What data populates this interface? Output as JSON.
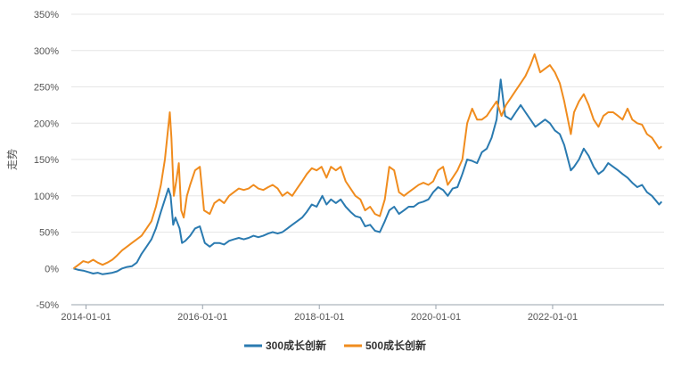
{
  "chart_data": {
    "type": "line",
    "ylabel": "走势",
    "ylim": [
      -50,
      350
    ],
    "y_ticks": [
      -50,
      0,
      50,
      100,
      150,
      200,
      250,
      300,
      350
    ],
    "y_tick_labels": [
      "-50%",
      "0%",
      "50%",
      "100%",
      "150%",
      "200%",
      "250%",
      "300%",
      "350%"
    ],
    "x_range": [
      "2013-10-01",
      "2023-11-30"
    ],
    "x_ticks": [
      "2014-01-01",
      "2016-01-01",
      "2018-01-01",
      "2020-01-01",
      "2022-01-01"
    ],
    "grid": "horizontal",
    "legend_position": "bottom",
    "series": [
      {
        "name": "300成长创新",
        "color": "#2a7ab0",
        "points": [
          [
            "2013-10-15",
            0
          ],
          [
            "2013-11-15",
            -2
          ],
          [
            "2013-12-15",
            -3
          ],
          [
            "2014-01-15",
            -5
          ],
          [
            "2014-02-15",
            -7
          ],
          [
            "2014-03-15",
            -6
          ],
          [
            "2014-04-15",
            -8
          ],
          [
            "2014-05-15",
            -7
          ],
          [
            "2014-06-15",
            -6
          ],
          [
            "2014-07-15",
            -4
          ],
          [
            "2014-08-15",
            0
          ],
          [
            "2014-09-15",
            2
          ],
          [
            "2014-10-15",
            3
          ],
          [
            "2014-11-15",
            8
          ],
          [
            "2014-12-15",
            20
          ],
          [
            "2015-01-15",
            30
          ],
          [
            "2015-02-15",
            40
          ],
          [
            "2015-03-15",
            55
          ],
          [
            "2015-04-15",
            78
          ],
          [
            "2015-05-10",
            95
          ],
          [
            "2015-06-01",
            110
          ],
          [
            "2015-06-15",
            100
          ],
          [
            "2015-07-01",
            60
          ],
          [
            "2015-07-15",
            70
          ],
          [
            "2015-08-10",
            55
          ],
          [
            "2015-08-25",
            35
          ],
          [
            "2015-09-15",
            38
          ],
          [
            "2015-10-15",
            45
          ],
          [
            "2015-11-15",
            55
          ],
          [
            "2015-12-15",
            58
          ],
          [
            "2016-01-15",
            35
          ],
          [
            "2016-02-15",
            30
          ],
          [
            "2016-03-15",
            35
          ],
          [
            "2016-04-15",
            35
          ],
          [
            "2016-05-15",
            33
          ],
          [
            "2016-06-15",
            38
          ],
          [
            "2016-07-15",
            40
          ],
          [
            "2016-08-15",
            42
          ],
          [
            "2016-09-15",
            40
          ],
          [
            "2016-10-15",
            42
          ],
          [
            "2016-11-15",
            45
          ],
          [
            "2016-12-15",
            43
          ],
          [
            "2017-01-15",
            45
          ],
          [
            "2017-02-15",
            48
          ],
          [
            "2017-03-15",
            50
          ],
          [
            "2017-04-15",
            48
          ],
          [
            "2017-05-15",
            50
          ],
          [
            "2017-06-15",
            55
          ],
          [
            "2017-07-15",
            60
          ],
          [
            "2017-08-15",
            65
          ],
          [
            "2017-09-15",
            70
          ],
          [
            "2017-10-15",
            78
          ],
          [
            "2017-11-15",
            88
          ],
          [
            "2017-12-15",
            85
          ],
          [
            "2018-01-20",
            100
          ],
          [
            "2018-02-15",
            88
          ],
          [
            "2018-03-15",
            95
          ],
          [
            "2018-04-15",
            90
          ],
          [
            "2018-05-15",
            95
          ],
          [
            "2018-06-15",
            85
          ],
          [
            "2018-07-15",
            78
          ],
          [
            "2018-08-15",
            72
          ],
          [
            "2018-09-15",
            70
          ],
          [
            "2018-10-15",
            58
          ],
          [
            "2018-11-15",
            60
          ],
          [
            "2018-12-15",
            52
          ],
          [
            "2019-01-15",
            50
          ],
          [
            "2019-02-15",
            65
          ],
          [
            "2019-03-15",
            80
          ],
          [
            "2019-04-15",
            85
          ],
          [
            "2019-05-15",
            75
          ],
          [
            "2019-06-15",
            80
          ],
          [
            "2019-07-15",
            85
          ],
          [
            "2019-08-15",
            85
          ],
          [
            "2019-09-15",
            90
          ],
          [
            "2019-10-15",
            92
          ],
          [
            "2019-11-15",
            95
          ],
          [
            "2019-12-15",
            105
          ],
          [
            "2020-01-15",
            112
          ],
          [
            "2020-02-15",
            108
          ],
          [
            "2020-03-15",
            100
          ],
          [
            "2020-04-15",
            110
          ],
          [
            "2020-05-15",
            112
          ],
          [
            "2020-06-15",
            130
          ],
          [
            "2020-07-15",
            150
          ],
          [
            "2020-08-15",
            148
          ],
          [
            "2020-09-15",
            145
          ],
          [
            "2020-10-15",
            160
          ],
          [
            "2020-11-15",
            165
          ],
          [
            "2020-12-15",
            180
          ],
          [
            "2021-01-15",
            205
          ],
          [
            "2021-02-10",
            260
          ],
          [
            "2021-03-10",
            210
          ],
          [
            "2021-04-15",
            205
          ],
          [
            "2021-05-15",
            215
          ],
          [
            "2021-06-15",
            225
          ],
          [
            "2021-07-15",
            215
          ],
          [
            "2021-08-15",
            205
          ],
          [
            "2021-09-15",
            195
          ],
          [
            "2021-10-15",
            200
          ],
          [
            "2021-11-15",
            205
          ],
          [
            "2021-12-15",
            200
          ],
          [
            "2022-01-15",
            190
          ],
          [
            "2022-02-15",
            185
          ],
          [
            "2022-03-15",
            170
          ],
          [
            "2022-04-25",
            135
          ],
          [
            "2022-05-15",
            140
          ],
          [
            "2022-06-15",
            150
          ],
          [
            "2022-07-15",
            165
          ],
          [
            "2022-08-15",
            155
          ],
          [
            "2022-09-15",
            140
          ],
          [
            "2022-10-15",
            130
          ],
          [
            "2022-11-15",
            135
          ],
          [
            "2022-12-15",
            145
          ],
          [
            "2023-01-15",
            140
          ],
          [
            "2023-02-15",
            135
          ],
          [
            "2023-03-15",
            130
          ],
          [
            "2023-04-15",
            125
          ],
          [
            "2023-05-15",
            118
          ],
          [
            "2023-06-15",
            112
          ],
          [
            "2023-07-15",
            115
          ],
          [
            "2023-08-15",
            105
          ],
          [
            "2023-09-15",
            100
          ],
          [
            "2023-10-15",
            92
          ],
          [
            "2023-10-30",
            88
          ],
          [
            "2023-11-15",
            92
          ]
        ]
      },
      {
        "name": "500成长创新",
        "color": "#f08c1e",
        "points": [
          [
            "2013-10-15",
            0
          ],
          [
            "2013-11-15",
            5
          ],
          [
            "2013-12-15",
            10
          ],
          [
            "2014-01-15",
            8
          ],
          [
            "2014-02-15",
            12
          ],
          [
            "2014-03-15",
            8
          ],
          [
            "2014-04-15",
            5
          ],
          [
            "2014-05-15",
            8
          ],
          [
            "2014-06-15",
            12
          ],
          [
            "2014-07-15",
            18
          ],
          [
            "2014-08-15",
            25
          ],
          [
            "2014-09-15",
            30
          ],
          [
            "2014-10-15",
            35
          ],
          [
            "2014-11-15",
            40
          ],
          [
            "2014-12-15",
            45
          ],
          [
            "2015-01-15",
            55
          ],
          [
            "2015-02-15",
            65
          ],
          [
            "2015-03-15",
            85
          ],
          [
            "2015-04-15",
            115
          ],
          [
            "2015-05-10",
            150
          ],
          [
            "2015-06-10",
            215
          ],
          [
            "2015-06-20",
            180
          ],
          [
            "2015-07-05",
            100
          ],
          [
            "2015-07-20",
            120
          ],
          [
            "2015-08-05",
            145
          ],
          [
            "2015-08-20",
            80
          ],
          [
            "2015-09-05",
            70
          ],
          [
            "2015-09-25",
            100
          ],
          [
            "2015-10-15",
            115
          ],
          [
            "2015-11-15",
            135
          ],
          [
            "2015-12-15",
            140
          ],
          [
            "2016-01-10",
            80
          ],
          [
            "2016-02-15",
            75
          ],
          [
            "2016-03-15",
            90
          ],
          [
            "2016-04-15",
            95
          ],
          [
            "2016-05-15",
            90
          ],
          [
            "2016-06-15",
            100
          ],
          [
            "2016-07-15",
            105
          ],
          [
            "2016-08-15",
            110
          ],
          [
            "2016-09-15",
            108
          ],
          [
            "2016-10-15",
            110
          ],
          [
            "2016-11-15",
            115
          ],
          [
            "2016-12-15",
            110
          ],
          [
            "2017-01-15",
            108
          ],
          [
            "2017-02-15",
            112
          ],
          [
            "2017-03-15",
            115
          ],
          [
            "2017-04-15",
            110
          ],
          [
            "2017-05-15",
            100
          ],
          [
            "2017-06-15",
            105
          ],
          [
            "2017-07-15",
            100
          ],
          [
            "2017-08-15",
            110
          ],
          [
            "2017-09-15",
            120
          ],
          [
            "2017-10-15",
            130
          ],
          [
            "2017-11-15",
            138
          ],
          [
            "2017-12-15",
            135
          ],
          [
            "2018-01-15",
            140
          ],
          [
            "2018-02-15",
            125
          ],
          [
            "2018-03-15",
            140
          ],
          [
            "2018-04-15",
            135
          ],
          [
            "2018-05-15",
            140
          ],
          [
            "2018-06-15",
            120
          ],
          [
            "2018-07-15",
            110
          ],
          [
            "2018-08-15",
            100
          ],
          [
            "2018-09-15",
            95
          ],
          [
            "2018-10-15",
            80
          ],
          [
            "2018-11-15",
            85
          ],
          [
            "2018-12-15",
            75
          ],
          [
            "2019-01-15",
            72
          ],
          [
            "2019-02-15",
            95
          ],
          [
            "2019-03-15",
            140
          ],
          [
            "2019-04-15",
            135
          ],
          [
            "2019-05-15",
            105
          ],
          [
            "2019-06-15",
            100
          ],
          [
            "2019-07-15",
            105
          ],
          [
            "2019-08-15",
            110
          ],
          [
            "2019-09-15",
            115
          ],
          [
            "2019-10-15",
            118
          ],
          [
            "2019-11-15",
            115
          ],
          [
            "2019-12-15",
            120
          ],
          [
            "2020-01-15",
            135
          ],
          [
            "2020-02-15",
            140
          ],
          [
            "2020-03-15",
            115
          ],
          [
            "2020-04-15",
            125
          ],
          [
            "2020-05-15",
            135
          ],
          [
            "2020-06-15",
            150
          ],
          [
            "2020-07-15",
            200
          ],
          [
            "2020-08-15",
            220
          ],
          [
            "2020-09-15",
            205
          ],
          [
            "2020-10-15",
            205
          ],
          [
            "2020-11-15",
            210
          ],
          [
            "2020-12-15",
            220
          ],
          [
            "2021-01-15",
            230
          ],
          [
            "2021-02-15",
            210
          ],
          [
            "2021-03-15",
            225
          ],
          [
            "2021-04-15",
            235
          ],
          [
            "2021-05-15",
            245
          ],
          [
            "2021-06-15",
            255
          ],
          [
            "2021-07-15",
            265
          ],
          [
            "2021-08-15",
            280
          ],
          [
            "2021-09-10",
            295
          ],
          [
            "2021-10-15",
            270
          ],
          [
            "2021-11-15",
            275
          ],
          [
            "2021-12-15",
            280
          ],
          [
            "2022-01-15",
            270
          ],
          [
            "2022-02-15",
            255
          ],
          [
            "2022-03-15",
            230
          ],
          [
            "2022-04-25",
            185
          ],
          [
            "2022-05-15",
            215
          ],
          [
            "2022-06-15",
            230
          ],
          [
            "2022-07-15",
            240
          ],
          [
            "2022-08-15",
            225
          ],
          [
            "2022-09-15",
            205
          ],
          [
            "2022-10-15",
            195
          ],
          [
            "2022-11-15",
            210
          ],
          [
            "2022-12-15",
            215
          ],
          [
            "2023-01-15",
            215
          ],
          [
            "2023-02-15",
            210
          ],
          [
            "2023-03-15",
            205
          ],
          [
            "2023-04-15",
            220
          ],
          [
            "2023-05-15",
            205
          ],
          [
            "2023-06-15",
            200
          ],
          [
            "2023-07-15",
            198
          ],
          [
            "2023-08-15",
            185
          ],
          [
            "2023-09-15",
            180
          ],
          [
            "2023-10-15",
            170
          ],
          [
            "2023-10-30",
            165
          ],
          [
            "2023-11-15",
            168
          ]
        ]
      }
    ]
  }
}
